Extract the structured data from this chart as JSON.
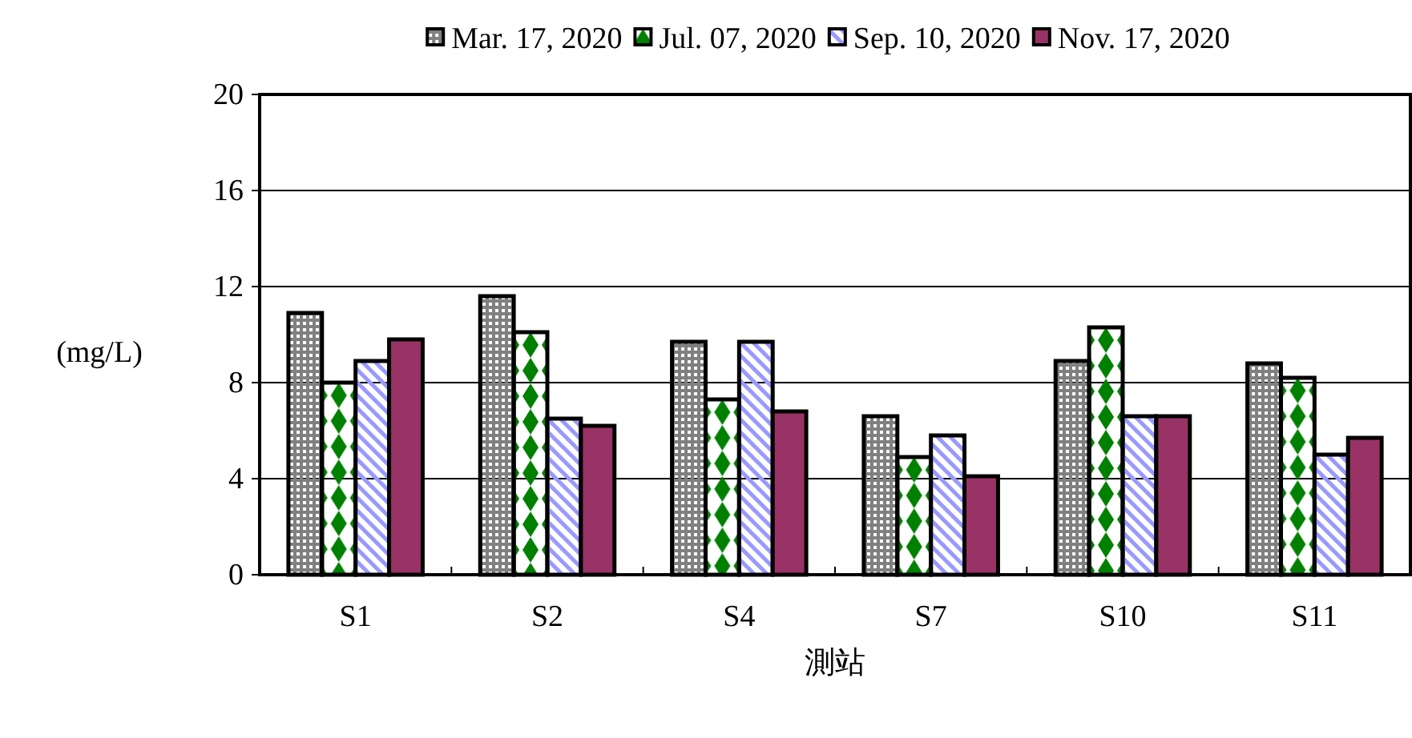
{
  "chart_data": {
    "type": "bar",
    "categories": [
      "S1",
      "S2",
      "S4",
      "S7",
      "S10",
      "S11"
    ],
    "series": [
      {
        "name": "Mar. 17, 2020",
        "color": "#808080",
        "values": [
          10.9,
          11.6,
          9.7,
          6.6,
          8.9,
          8.8
        ]
      },
      {
        "name": "Jul. 07, 2020",
        "color": "#008000",
        "values": [
          8.0,
          10.1,
          7.3,
          4.9,
          10.3,
          8.2
        ]
      },
      {
        "name": "Sep. 10, 2020",
        "color": "#9999ff",
        "values": [
          8.9,
          6.5,
          9.7,
          5.8,
          6.6,
          5.0
        ]
      },
      {
        "name": "Nov. 17, 2020",
        "color": "#993366",
        "values": [
          9.8,
          6.2,
          6.8,
          4.1,
          6.6,
          5.7
        ]
      }
    ],
    "ylim": [
      0,
      20
    ],
    "yticks": [
      0,
      4,
      8,
      12,
      16,
      20
    ],
    "ylabel": "(mg/L)",
    "xlabel": "測站",
    "grid": "y",
    "legend": "top"
  }
}
